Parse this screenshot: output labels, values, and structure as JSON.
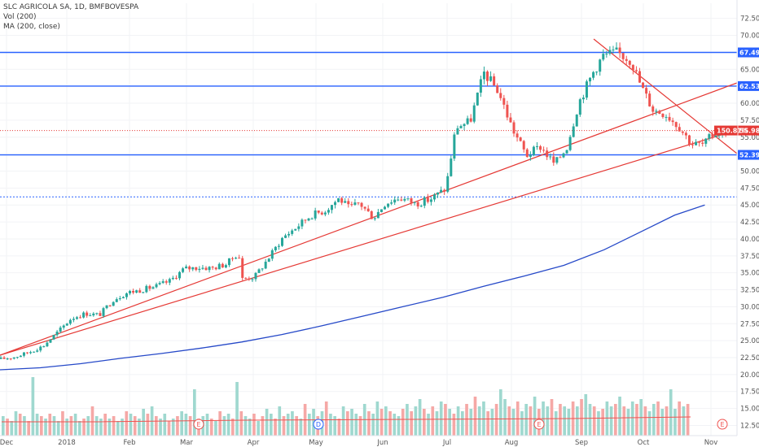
{
  "legend": {
    "title": "SLC AGRICOLA SA, 1D, BMFBOVESPA",
    "vol": "Vol (200)",
    "ma": "MA (200, close)"
  },
  "chart_data": {
    "type": "candlestick",
    "symbol": "SLC AGRICOLA SA",
    "interval": "1D",
    "exchange": "BMFBOVESPA",
    "x_tick_labels": [
      "Dec",
      "2018",
      "Feb",
      "Mar",
      "Apr",
      "May",
      "Jun",
      "Jul",
      "Aug",
      "Sep",
      "Oct",
      "Nov"
    ],
    "y_tick_labels": [
      "12.50",
      "15.00",
      "17.50",
      "20.00",
      "22.50",
      "25.00",
      "27.50",
      "30.00",
      "32.50",
      "35.00",
      "37.50",
      "40.00",
      "42.50",
      "45.00",
      "47.50",
      "50.00",
      "52.50",
      "55.00",
      "57.50",
      "60.00",
      "62.50",
      "65.00",
      "67.50",
      "70.00",
      "72.50"
    ],
    "ylim": [
      11.0,
      73.9
    ],
    "x_range_days": [
      0,
      366
    ],
    "horizontal_levels": [
      {
        "value": "67.49",
        "color": "#2962ff"
      },
      {
        "value": "62.53",
        "color": "#2962ff"
      },
      {
        "value": "52.39",
        "color": "#2962ff"
      },
      {
        "value": 46.2,
        "color": "#2962ff",
        "style": "dotted"
      }
    ],
    "last_price": {
      "value": "55.98",
      "percent": "150.81%",
      "color": "#e53935"
    },
    "colors": {
      "up": "#26a69a",
      "down": "#ef5350",
      "ma": "#2649c8",
      "trendline": "#e53935",
      "level": "#2962ff"
    },
    "trendlines": [
      {
        "from": [
          0,
          22.3
        ],
        "to": [
          366,
          62.5
        ]
      },
      {
        "from": [
          0,
          22.3
        ],
        "to": [
          366,
          55.2
        ]
      },
      {
        "from": [
          299,
          68.3
        ],
        "to": [
          366,
          53.2
        ]
      }
    ],
    "moving_average_200": [
      [
        0,
        20.7
      ],
      [
        20,
        21.0
      ],
      [
        40,
        21.6
      ],
      [
        60,
        22.4
      ],
      [
        80,
        23.1
      ],
      [
        100,
        23.9
      ],
      [
        120,
        24.8
      ],
      [
        140,
        25.9
      ],
      [
        160,
        27.2
      ],
      [
        180,
        28.6
      ],
      [
        200,
        30.0
      ],
      [
        220,
        31.4
      ],
      [
        240,
        33.0
      ],
      [
        260,
        34.5
      ],
      [
        280,
        36.1
      ],
      [
        300,
        38.4
      ],
      [
        320,
        41.3
      ],
      [
        335,
        43.5
      ],
      [
        350,
        45.0
      ],
      [
        348,
        44.8
      ]
    ],
    "event_markers": [
      {
        "label": "E",
        "x": 101
      },
      {
        "label": "D",
        "x": 161
      },
      {
        "label": "E",
        "x": 275
      },
      {
        "label": "E",
        "x": 371
      }
    ],
    "price_path": [
      [
        0,
        22.3
      ],
      [
        7,
        22.6
      ],
      [
        14,
        23.3
      ],
      [
        21,
        24.2
      ],
      [
        28,
        26.2
      ],
      [
        35,
        28.3
      ],
      [
        42,
        29.0
      ],
      [
        49,
        28.8
      ],
      [
        56,
        31.1
      ],
      [
        63,
        32.1
      ],
      [
        70,
        32.5
      ],
      [
        77,
        33.0
      ],
      [
        84,
        33.8
      ],
      [
        91,
        35.6
      ],
      [
        98,
        35.8
      ],
      [
        105,
        35.7
      ],
      [
        112,
        36.3
      ],
      [
        118,
        38.0
      ],
      [
        120,
        34.1
      ],
      [
        126,
        34.4
      ],
      [
        133,
        37.2
      ],
      [
        140,
        40.2
      ],
      [
        147,
        41.8
      ],
      [
        154,
        43.5
      ],
      [
        161,
        44.2
      ],
      [
        168,
        46.0
      ],
      [
        173,
        44.5
      ],
      [
        178,
        45.3
      ],
      [
        185,
        43.1
      ],
      [
        191,
        45.3
      ],
      [
        198,
        46.1
      ],
      [
        206,
        45.2
      ],
      [
        213,
        45.8
      ],
      [
        221,
        47.4
      ],
      [
        226,
        56.5
      ],
      [
        233,
        57.3
      ],
      [
        240,
        64.5
      ],
      [
        247,
        61.8
      ],
      [
        254,
        56.3
      ],
      [
        261,
        52.3
      ],
      [
        268,
        53.6
      ],
      [
        275,
        51.0
      ],
      [
        281,
        53.5
      ],
      [
        287,
        60.1
      ],
      [
        294,
        64.5
      ],
      [
        299,
        67.0
      ],
      [
        306,
        67.5
      ],
      [
        313,
        66.3
      ],
      [
        318,
        62.5
      ],
      [
        324,
        59.0
      ],
      [
        330,
        58.5
      ],
      [
        337,
        56.5
      ],
      [
        343,
        54.0
      ],
      [
        349,
        53.9
      ],
      [
        354,
        55.5
      ],
      [
        360,
        55.9
      ]
    ],
    "volume_bars": [
      8,
      7,
      6,
      10,
      9,
      8,
      6,
      24,
      9,
      8,
      7,
      9,
      8,
      6,
      10,
      7,
      8,
      9,
      6,
      7,
      8,
      12,
      8,
      7,
      9,
      7,
      8,
      6,
      7,
      10,
      9,
      8,
      7,
      11,
      9,
      12,
      8,
      7,
      9,
      6,
      7,
      8,
      10,
      9,
      8,
      19,
      7,
      8,
      9,
      7,
      6,
      10,
      8,
      9,
      7,
      22,
      10,
      8,
      7,
      9,
      6,
      8,
      11,
      9,
      7,
      12,
      8,
      9,
      10,
      8,
      7,
      13,
      9,
      11,
      8,
      10,
      14,
      9,
      8,
      7,
      12,
      10,
      11,
      9,
      8,
      13,
      10,
      9,
      14,
      11,
      12,
      10,
      9,
      8,
      11,
      13,
      10,
      12,
      15,
      11,
      9,
      12,
      10,
      14,
      13,
      11,
      9,
      12,
      10,
      13,
      11,
      16,
      12,
      14,
      10,
      11,
      13,
      19,
      15,
      12,
      11,
      14,
      10,
      13,
      12,
      16,
      11,
      14,
      12,
      15,
      10,
      13,
      12,
      11,
      14,
      12,
      15,
      17,
      13,
      12,
      10,
      11,
      14,
      12,
      13,
      16,
      12,
      11,
      14,
      13,
      15,
      12,
      10,
      13,
      14,
      11,
      12,
      19,
      11,
      14,
      12,
      13
    ]
  }
}
